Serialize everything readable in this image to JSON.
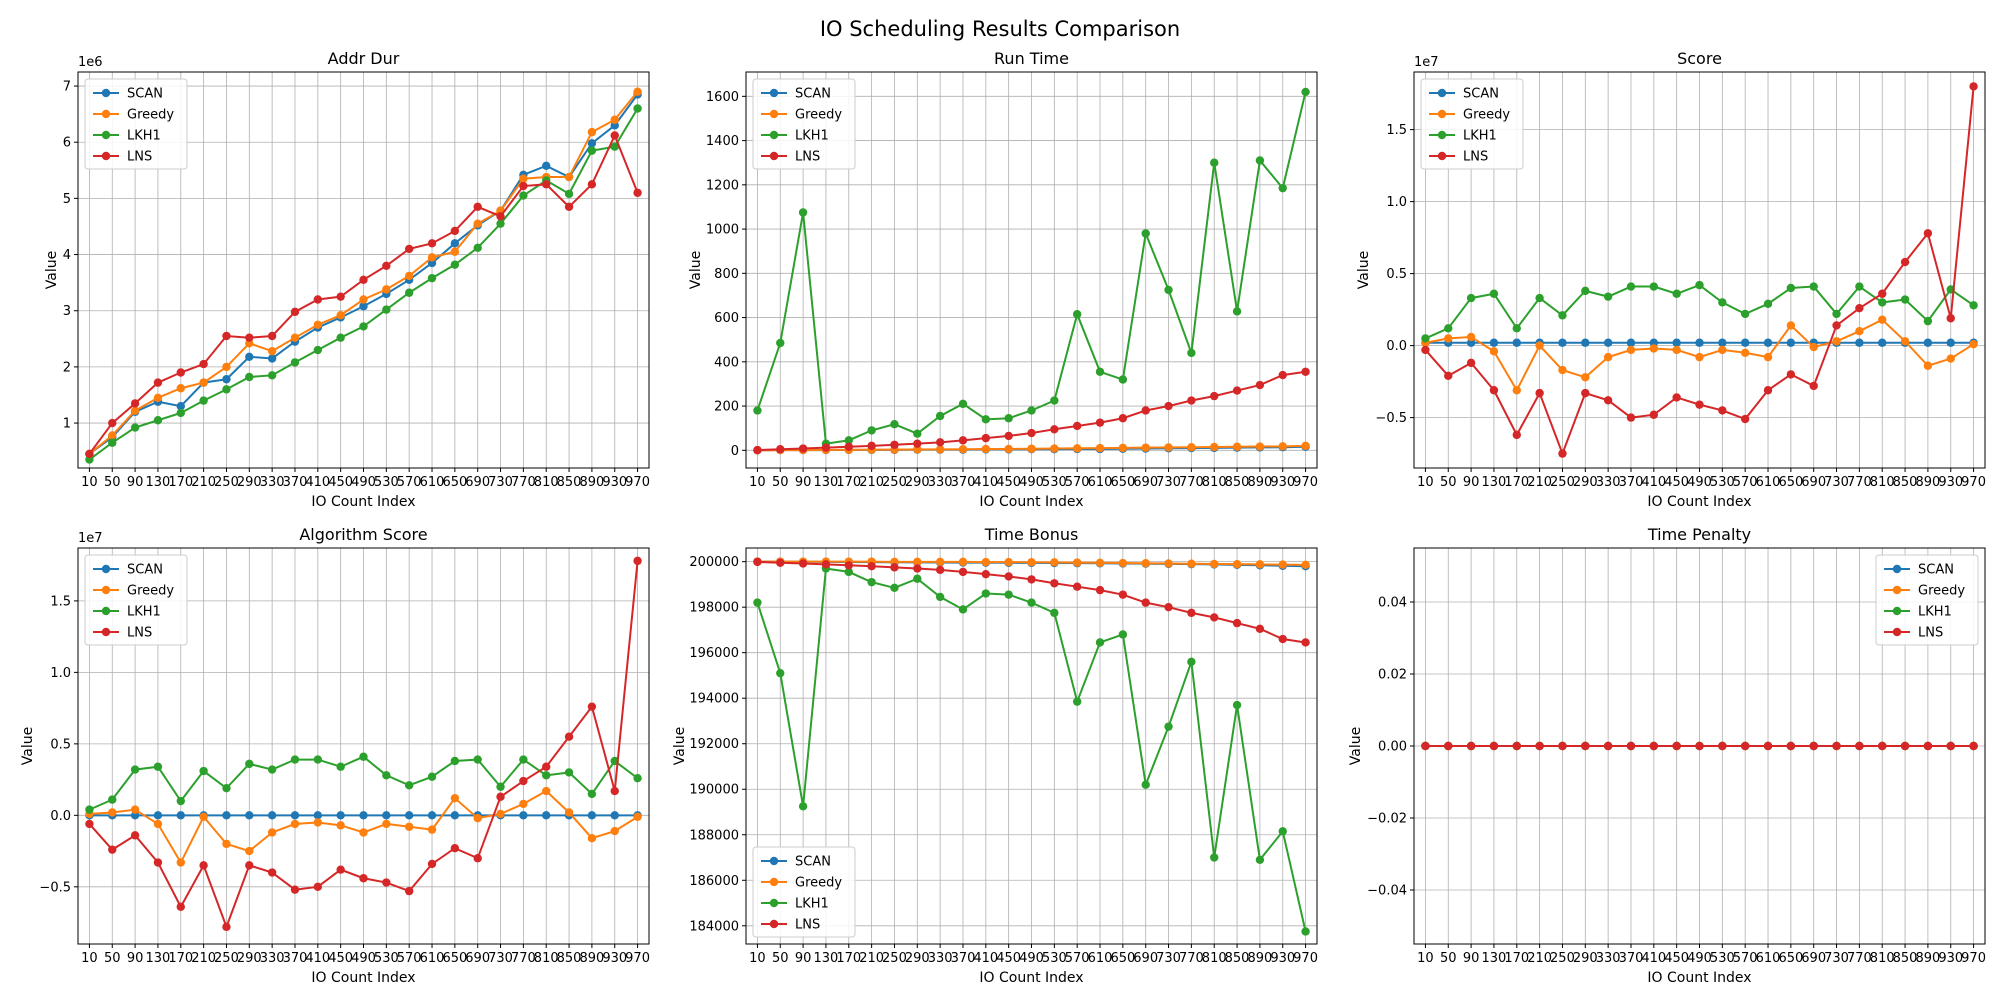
{
  "figure": {
    "title": "IO Scheduling Results Comparison"
  },
  "chart_data": [
    {
      "type": "line",
      "title": "Addr Dur",
      "xlabel": "IO Count Index",
      "ylabel": "Value",
      "offset_text": "1e6",
      "x": [
        "10",
        "50",
        "90",
        "130",
        "170",
        "210",
        "250",
        "290",
        "330",
        "370",
        "410",
        "450",
        "490",
        "530",
        "570",
        "610",
        "650",
        "690",
        "730",
        "770",
        "810",
        "850",
        "890",
        "930",
        "970"
      ],
      "ylim": [
        0.2,
        7.25
      ],
      "yticks": [
        1,
        2,
        3,
        4,
        5,
        6,
        7
      ],
      "yticklabels": [
        "1",
        "2",
        "3",
        "4",
        "5",
        "6",
        "7"
      ],
      "grid": true,
      "legend": "top-left",
      "series": [
        {
          "name": "SCAN",
          "color": "#1f77b4",
          "values": [
            0.45,
            0.75,
            1.2,
            1.38,
            1.3,
            1.72,
            1.78,
            2.18,
            2.15,
            2.45,
            2.7,
            2.88,
            3.08,
            3.3,
            3.55,
            3.85,
            4.2,
            4.52,
            4.78,
            5.42,
            5.58,
            5.38,
            5.98,
            6.3,
            6.85
          ]
        },
        {
          "name": "Greedy",
          "color": "#ff7f0e",
          "values": [
            0.45,
            0.78,
            1.22,
            1.45,
            1.62,
            1.72,
            2.0,
            2.42,
            2.28,
            2.52,
            2.75,
            2.92,
            3.2,
            3.38,
            3.62,
            3.95,
            4.05,
            4.55,
            4.78,
            5.35,
            5.38,
            5.38,
            6.18,
            6.4,
            6.9
          ]
        },
        {
          "name": "LKH1",
          "color": "#2ca02c",
          "values": [
            0.35,
            0.65,
            0.92,
            1.05,
            1.18,
            1.4,
            1.6,
            1.82,
            1.85,
            2.08,
            2.3,
            2.52,
            2.72,
            3.02,
            3.32,
            3.58,
            3.82,
            4.12,
            4.55,
            5.05,
            5.32,
            5.08,
            5.85,
            5.92,
            6.6
          ]
        },
        {
          "name": "LNS",
          "color": "#d62728",
          "values": [
            0.45,
            1.0,
            1.35,
            1.72,
            1.9,
            2.05,
            2.55,
            2.52,
            2.55,
            2.98,
            3.2,
            3.25,
            3.55,
            3.8,
            4.1,
            4.2,
            4.42,
            4.85,
            4.68,
            5.22,
            5.25,
            4.85,
            5.25,
            6.12,
            5.1
          ]
        }
      ]
    },
    {
      "type": "line",
      "title": "Run Time",
      "xlabel": "IO Count Index",
      "ylabel": "Value",
      "offset_text": "",
      "x": [
        "10",
        "50",
        "90",
        "130",
        "170",
        "210",
        "250",
        "290",
        "330",
        "370",
        "410",
        "450",
        "490",
        "530",
        "570",
        "610",
        "650",
        "690",
        "730",
        "770",
        "810",
        "850",
        "890",
        "930",
        "970"
      ],
      "ylim": [
        -80,
        1710
      ],
      "yticks": [
        0,
        200,
        400,
        600,
        800,
        1000,
        1200,
        1400,
        1600
      ],
      "yticklabels": [
        "0",
        "200",
        "400",
        "600",
        "800",
        "1000",
        "1200",
        "1400",
        "1600"
      ],
      "grid": true,
      "legend": "top-left",
      "series": [
        {
          "name": "SCAN",
          "color": "#1f77b4",
          "values": [
            0,
            1,
            1,
            1,
            2,
            2,
            2,
            3,
            3,
            3,
            4,
            4,
            5,
            5,
            6,
            6,
            7,
            8,
            9,
            10,
            11,
            12,
            13,
            14,
            16
          ]
        },
        {
          "name": "Greedy",
          "color": "#ff7f0e",
          "values": [
            0,
            1,
            1,
            2,
            2,
            3,
            3,
            4,
            4,
            5,
            6,
            6,
            7,
            8,
            9,
            10,
            11,
            12,
            13,
            14,
            15,
            16,
            17,
            18,
            20
          ]
        },
        {
          "name": "LKH1",
          "color": "#2ca02c",
          "values": [
            180,
            485,
            1075,
            30,
            45,
            90,
            118,
            75,
            155,
            210,
            140,
            145,
            180,
            225,
            615,
            355,
            320,
            980,
            725,
            440,
            1300,
            628,
            1310,
            1185,
            1620
          ]
        },
        {
          "name": "LNS",
          "color": "#d62728",
          "values": [
            1,
            5,
            8,
            12,
            16,
            20,
            25,
            30,
            36,
            45,
            55,
            65,
            78,
            95,
            110,
            125,
            145,
            180,
            200,
            225,
            245,
            270,
            295,
            340,
            355
          ]
        }
      ]
    },
    {
      "type": "line",
      "title": "Score",
      "xlabel": "IO Count Index",
      "ylabel": "Value",
      "offset_text": "1e7",
      "x": [
        "10",
        "50",
        "90",
        "130",
        "170",
        "210",
        "250",
        "290",
        "330",
        "370",
        "410",
        "450",
        "490",
        "530",
        "570",
        "610",
        "650",
        "690",
        "730",
        "770",
        "810",
        "850",
        "890",
        "930",
        "970"
      ],
      "ylim": [
        -0.85,
        1.9
      ],
      "yticks": [
        -0.5,
        0.0,
        0.5,
        1.0,
        1.5
      ],
      "yticklabels": [
        "−0.5",
        "0.0",
        "0.5",
        "1.0",
        "1.5"
      ],
      "grid": true,
      "legend": "top-left",
      "series": [
        {
          "name": "SCAN",
          "color": "#1f77b4",
          "values": [
            0.02,
            0.02,
            0.02,
            0.02,
            0.02,
            0.02,
            0.02,
            0.02,
            0.02,
            0.02,
            0.02,
            0.02,
            0.02,
            0.02,
            0.02,
            0.02,
            0.02,
            0.02,
            0.02,
            0.02,
            0.02,
            0.02,
            0.02,
            0.02,
            0.02
          ]
        },
        {
          "name": "Greedy",
          "color": "#ff7f0e",
          "values": [
            0.02,
            0.05,
            0.06,
            -0.04,
            -0.31,
            0.0,
            -0.17,
            -0.22,
            -0.08,
            -0.03,
            -0.02,
            -0.03,
            -0.08,
            -0.03,
            -0.05,
            -0.08,
            0.14,
            -0.01,
            0.03,
            0.1,
            0.18,
            0.03,
            -0.14,
            -0.09,
            0.01
          ]
        },
        {
          "name": "LKH1",
          "color": "#2ca02c",
          "values": [
            0.05,
            0.12,
            0.33,
            0.36,
            0.12,
            0.33,
            0.21,
            0.38,
            0.34,
            0.41,
            0.41,
            0.36,
            0.42,
            0.3,
            0.22,
            0.29,
            0.4,
            0.41,
            0.22,
            0.41,
            0.3,
            0.32,
            0.17,
            0.39,
            0.28
          ]
        },
        {
          "name": "LNS",
          "color": "#d62728",
          "values": [
            -0.03,
            -0.21,
            -0.12,
            -0.31,
            -0.62,
            -0.33,
            -0.75,
            -0.33,
            -0.38,
            -0.5,
            -0.48,
            -0.36,
            -0.41,
            -0.45,
            -0.51,
            -0.31,
            -0.2,
            -0.28,
            0.14,
            0.26,
            0.36,
            0.58,
            0.78,
            0.19,
            1.8
          ]
        }
      ]
    },
    {
      "type": "line",
      "title": "Algorithm Score",
      "xlabel": "IO Count Index",
      "ylabel": "Value",
      "offset_text": "1e7",
      "x": [
        "10",
        "50",
        "90",
        "130",
        "170",
        "210",
        "250",
        "290",
        "330",
        "370",
        "410",
        "450",
        "490",
        "530",
        "570",
        "610",
        "650",
        "690",
        "730",
        "770",
        "810",
        "850",
        "890",
        "930",
        "970"
      ],
      "ylim": [
        -0.9,
        1.87
      ],
      "yticks": [
        -0.5,
        0.0,
        0.5,
        1.0,
        1.5
      ],
      "yticklabels": [
        "−0.5",
        "0.0",
        "0.5",
        "1.0",
        "1.5"
      ],
      "grid": true,
      "legend": "top-left",
      "series": [
        {
          "name": "SCAN",
          "color": "#1f77b4",
          "values": [
            0,
            0,
            0,
            0,
            0,
            0,
            0,
            0,
            0,
            0,
            0,
            0,
            0,
            0,
            0,
            0,
            0,
            0,
            0,
            0,
            0,
            0,
            0,
            0,
            0
          ]
        },
        {
          "name": "Greedy",
          "color": "#ff7f0e",
          "values": [
            0.01,
            0.02,
            0.04,
            -0.06,
            -0.33,
            -0.01,
            -0.2,
            -0.25,
            -0.12,
            -0.06,
            -0.05,
            -0.07,
            -0.12,
            -0.06,
            -0.08,
            -0.1,
            0.12,
            -0.02,
            0.01,
            0.08,
            0.17,
            0.02,
            -0.16,
            -0.11,
            -0.01
          ]
        },
        {
          "name": "LKH1",
          "color": "#2ca02c",
          "values": [
            0.04,
            0.11,
            0.32,
            0.34,
            0.1,
            0.31,
            0.19,
            0.36,
            0.32,
            0.39,
            0.39,
            0.34,
            0.41,
            0.28,
            0.21,
            0.27,
            0.38,
            0.39,
            0.2,
            0.39,
            0.28,
            0.3,
            0.15,
            0.38,
            0.26
          ]
        },
        {
          "name": "LNS",
          "color": "#d62728",
          "values": [
            -0.06,
            -0.24,
            -0.14,
            -0.33,
            -0.64,
            -0.35,
            -0.78,
            -0.35,
            -0.4,
            -0.52,
            -0.5,
            -0.38,
            -0.44,
            -0.47,
            -0.53,
            -0.34,
            -0.23,
            -0.3,
            0.13,
            0.24,
            0.34,
            0.55,
            0.76,
            0.17,
            1.78
          ]
        }
      ]
    },
    {
      "type": "line",
      "title": "Time Bonus",
      "xlabel": "IO Count Index",
      "ylabel": "Value",
      "offset_text": "",
      "x": [
        "10",
        "50",
        "90",
        "130",
        "170",
        "210",
        "250",
        "290",
        "330",
        "370",
        "410",
        "450",
        "490",
        "530",
        "570",
        "610",
        "650",
        "690",
        "730",
        "770",
        "810",
        "850",
        "890",
        "930",
        "970"
      ],
      "ylim": [
        183200,
        200600
      ],
      "yticks": [
        184000,
        186000,
        188000,
        190000,
        192000,
        194000,
        196000,
        198000,
        200000
      ],
      "yticklabels": [
        "184000",
        "186000",
        "188000",
        "190000",
        "192000",
        "194000",
        "196000",
        "198000",
        "200000"
      ],
      "grid": true,
      "legend": "bottom-left",
      "series": [
        {
          "name": "SCAN",
          "color": "#1f77b4",
          "values": [
            200000,
            200000,
            199995,
            199990,
            199985,
            199980,
            199975,
            199970,
            199965,
            199960,
            199955,
            199950,
            199945,
            199940,
            199935,
            199930,
            199920,
            199910,
            199900,
            199890,
            199880,
            199860,
            199840,
            199820,
            199800
          ]
        },
        {
          "name": "Greedy",
          "color": "#ff7f0e",
          "values": [
            200000,
            200000,
            200000,
            200000,
            200000,
            200000,
            199990,
            199990,
            199990,
            199990,
            199980,
            199980,
            199975,
            199970,
            199960,
            199950,
            199940,
            199930,
            199920,
            199910,
            199900,
            199890,
            199880,
            199870,
            199860
          ]
        },
        {
          "name": "LKH1",
          "color": "#2ca02c",
          "values": [
            198200,
            195100,
            189250,
            199700,
            199550,
            199100,
            198850,
            199250,
            198450,
            197900,
            198600,
            198550,
            198200,
            197750,
            193850,
            196450,
            196800,
            190200,
            192750,
            195600,
            187000,
            193700,
            186900,
            188150,
            183750
          ]
        },
        {
          "name": "LNS",
          "color": "#d62728",
          "values": [
            199990,
            199950,
            199920,
            199880,
            199840,
            199800,
            199750,
            199700,
            199640,
            199550,
            199450,
            199350,
            199220,
            199050,
            198900,
            198750,
            198550,
            198200,
            198000,
            197750,
            197550,
            197300,
            197050,
            196600,
            196450
          ]
        }
      ]
    },
    {
      "type": "line",
      "title": "Time Penalty",
      "xlabel": "IO Count Index",
      "ylabel": "Value",
      "offset_text": "",
      "x": [
        "10",
        "50",
        "90",
        "130",
        "170",
        "210",
        "250",
        "290",
        "330",
        "370",
        "410",
        "450",
        "490",
        "530",
        "570",
        "610",
        "650",
        "690",
        "730",
        "770",
        "810",
        "850",
        "890",
        "930",
        "970"
      ],
      "ylim": [
        -0.055,
        0.055
      ],
      "yticks": [
        -0.04,
        -0.02,
        0.0,
        0.02,
        0.04
      ],
      "yticklabels": [
        "−0.04",
        "−0.02",
        "0.00",
        "0.02",
        "0.04"
      ],
      "grid": true,
      "legend": "top-right",
      "series": [
        {
          "name": "SCAN",
          "color": "#1f77b4",
          "values": [
            0,
            0,
            0,
            0,
            0,
            0,
            0,
            0,
            0,
            0,
            0,
            0,
            0,
            0,
            0,
            0,
            0,
            0,
            0,
            0,
            0,
            0,
            0,
            0,
            0
          ]
        },
        {
          "name": "Greedy",
          "color": "#ff7f0e",
          "values": [
            0,
            0,
            0,
            0,
            0,
            0,
            0,
            0,
            0,
            0,
            0,
            0,
            0,
            0,
            0,
            0,
            0,
            0,
            0,
            0,
            0,
            0,
            0,
            0,
            0
          ]
        },
        {
          "name": "LKH1",
          "color": "#2ca02c",
          "values": [
            0,
            0,
            0,
            0,
            0,
            0,
            0,
            0,
            0,
            0,
            0,
            0,
            0,
            0,
            0,
            0,
            0,
            0,
            0,
            0,
            0,
            0,
            0,
            0,
            0
          ]
        },
        {
          "name": "LNS",
          "color": "#d62728",
          "values": [
            0,
            0,
            0,
            0,
            0,
            0,
            0,
            0,
            0,
            0,
            0,
            0,
            0,
            0,
            0,
            0,
            0,
            0,
            0,
            0,
            0,
            0,
            0,
            0,
            0
          ]
        }
      ]
    }
  ]
}
